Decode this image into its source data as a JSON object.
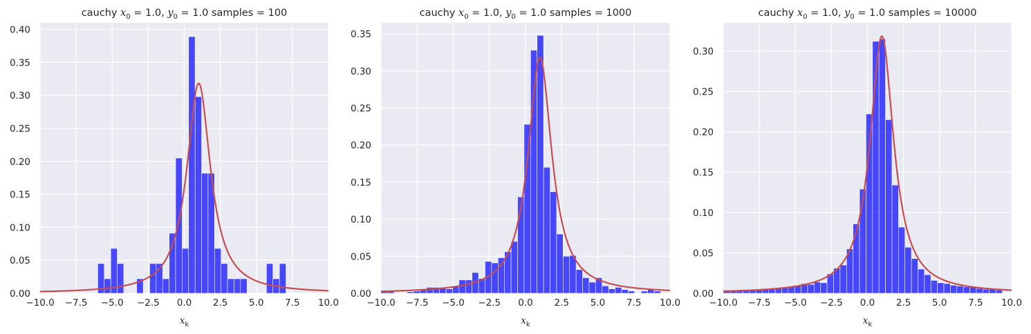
{
  "chart_data": [
    {
      "type": "bar",
      "title": "cauchy $x_0 = 1.0$, $y_0 = 1.0$  samples = 100",
      "xlabel": "$x_k$",
      "ylabel": "",
      "xlim": [
        -10,
        10
      ],
      "ylim": [
        0,
        0.41
      ],
      "xticks": [
        "−10.0",
        "−7.5",
        "−5.0",
        "−2.5",
        "0.0",
        "2.5",
        "5.0",
        "7.5",
        "10.0"
      ],
      "yticks": [
        "0.00",
        "0.05",
        "0.10",
        "0.15",
        "0.20",
        "0.25",
        "0.30",
        "0.35",
        "0.40"
      ],
      "grid": true,
      "bin_width": 0.45,
      "bins": [
        {
          "x": -6.0,
          "h": 0.045
        },
        {
          "x": -5.55,
          "h": 0.022
        },
        {
          "x": -5.1,
          "h": 0.068
        },
        {
          "x": -4.65,
          "h": 0.045
        },
        {
          "x": -3.3,
          "h": 0.022
        },
        {
          "x": -2.4,
          "h": 0.045
        },
        {
          "x": -1.95,
          "h": 0.045
        },
        {
          "x": -1.5,
          "h": 0.022
        },
        {
          "x": -1.05,
          "h": 0.091
        },
        {
          "x": -0.6,
          "h": 0.205
        },
        {
          "x": -0.15,
          "h": 0.068
        },
        {
          "x": 0.3,
          "h": 0.389
        },
        {
          "x": 0.75,
          "h": 0.298
        },
        {
          "x": 1.2,
          "h": 0.182
        },
        {
          "x": 1.65,
          "h": 0.182
        },
        {
          "x": 2.1,
          "h": 0.068
        },
        {
          "x": 2.55,
          "h": 0.045
        },
        {
          "x": 3.0,
          "h": 0.022
        },
        {
          "x": 3.45,
          "h": 0.022
        },
        {
          "x": 3.9,
          "h": 0.022
        },
        {
          "x": 5.7,
          "h": 0.045
        },
        {
          "x": 6.15,
          "h": 0.022
        },
        {
          "x": 6.6,
          "h": 0.045
        }
      ],
      "curve": {
        "type": "cauchy_pdf",
        "x0": 1.0,
        "y0": 1.0
      }
    },
    {
      "type": "bar",
      "title": "cauchy $x_0 = 1.0$, $y_0 = 1.0$  samples = 1000",
      "xlabel": "$x_k$",
      "ylabel": "",
      "xlim": [
        -10,
        10
      ],
      "ylim": [
        0,
        0.365
      ],
      "xticks": [
        "−10.0",
        "−7.5",
        "−5.0",
        "−2.5",
        "0.0",
        "2.5",
        "5.0",
        "7.5",
        "10.0"
      ],
      "yticks": [
        "0.00",
        "0.05",
        "0.10",
        "0.15",
        "0.20",
        "0.25",
        "0.30",
        "0.35"
      ],
      "grid": true,
      "bin_width": 0.45,
      "bins": [
        {
          "x": -10.0,
          "h": 0.003
        },
        {
          "x": -9.55,
          "h": 0.003
        },
        {
          "x": -8.2,
          "h": 0.002
        },
        {
          "x": -7.75,
          "h": 0.003
        },
        {
          "x": -7.3,
          "h": 0.005
        },
        {
          "x": -6.85,
          "h": 0.008
        },
        {
          "x": -6.4,
          "h": 0.008
        },
        {
          "x": -5.95,
          "h": 0.008
        },
        {
          "x": -5.5,
          "h": 0.006
        },
        {
          "x": -5.05,
          "h": 0.01
        },
        {
          "x": -4.6,
          "h": 0.018
        },
        {
          "x": -4.15,
          "h": 0.018
        },
        {
          "x": -3.7,
          "h": 0.028
        },
        {
          "x": -3.25,
          "h": 0.02
        },
        {
          "x": -2.8,
          "h": 0.043
        },
        {
          "x": -2.35,
          "h": 0.041
        },
        {
          "x": -1.9,
          "h": 0.048
        },
        {
          "x": -1.45,
          "h": 0.056
        },
        {
          "x": -1.0,
          "h": 0.07
        },
        {
          "x": -0.55,
          "h": 0.13
        },
        {
          "x": -0.1,
          "h": 0.228
        },
        {
          "x": 0.35,
          "h": 0.328
        },
        {
          "x": 0.8,
          "h": 0.348
        },
        {
          "x": 1.25,
          "h": 0.17
        },
        {
          "x": 1.7,
          "h": 0.137
        },
        {
          "x": 2.15,
          "h": 0.08
        },
        {
          "x": 2.6,
          "h": 0.05
        },
        {
          "x": 3.05,
          "h": 0.051
        },
        {
          "x": 3.5,
          "h": 0.032
        },
        {
          "x": 3.95,
          "h": 0.021
        },
        {
          "x": 4.4,
          "h": 0.015
        },
        {
          "x": 4.85,
          "h": 0.021
        },
        {
          "x": 5.3,
          "h": 0.01
        },
        {
          "x": 5.75,
          "h": 0.006
        },
        {
          "x": 6.2,
          "h": 0.008
        },
        {
          "x": 6.65,
          "h": 0.005
        },
        {
          "x": 7.1,
          "h": 0.003
        },
        {
          "x": 8.0,
          "h": 0.003
        },
        {
          "x": 8.45,
          "h": 0.005
        },
        {
          "x": 8.9,
          "h": 0.003
        }
      ],
      "curve": {
        "type": "cauchy_pdf",
        "x0": 1.0,
        "y0": 1.0
      }
    },
    {
      "type": "bar",
      "title": "cauchy $x_0 = 1.0$, $y_0 = 1.0$  samples = 10000",
      "xlabel": "$x_k$",
      "ylabel": "",
      "xlim": [
        -10,
        10
      ],
      "ylim": [
        0,
        0.335
      ],
      "xticks": [
        "−10.0",
        "−7.5",
        "−5.0",
        "−2.5",
        "0.0",
        "2.5",
        "5.0",
        "7.5",
        "10.0"
      ],
      "yticks": [
        "0.00",
        "0.05",
        "0.10",
        "0.15",
        "0.20",
        "0.25",
        "0.30"
      ],
      "grid": true,
      "bin_width": 0.45,
      "bins": [
        {
          "x": -10.0,
          "h": 0.004
        },
        {
          "x": -9.55,
          "h": 0.004
        },
        {
          "x": -9.1,
          "h": 0.003
        },
        {
          "x": -8.65,
          "h": 0.004
        },
        {
          "x": -8.2,
          "h": 0.004
        },
        {
          "x": -7.75,
          "h": 0.005
        },
        {
          "x": -7.3,
          "h": 0.005
        },
        {
          "x": -6.85,
          "h": 0.005
        },
        {
          "x": -6.4,
          "h": 0.006
        },
        {
          "x": -5.95,
          "h": 0.007
        },
        {
          "x": -5.5,
          "h": 0.008
        },
        {
          "x": -5.05,
          "h": 0.01
        },
        {
          "x": -4.6,
          "h": 0.012
        },
        {
          "x": -4.15,
          "h": 0.011
        },
        {
          "x": -3.7,
          "h": 0.014
        },
        {
          "x": -3.25,
          "h": 0.013
        },
        {
          "x": -2.8,
          "h": 0.024
        },
        {
          "x": -2.35,
          "h": 0.031
        },
        {
          "x": -1.9,
          "h": 0.035
        },
        {
          "x": -1.45,
          "h": 0.055
        },
        {
          "x": -1.0,
          "h": 0.086
        },
        {
          "x": -0.55,
          "h": 0.129
        },
        {
          "x": -0.1,
          "h": 0.222
        },
        {
          "x": 0.35,
          "h": 0.312
        },
        {
          "x": 0.8,
          "h": 0.315
        },
        {
          "x": 1.25,
          "h": 0.215
        },
        {
          "x": 1.7,
          "h": 0.134
        },
        {
          "x": 2.15,
          "h": 0.082
        },
        {
          "x": 2.6,
          "h": 0.057
        },
        {
          "x": 3.05,
          "h": 0.043
        },
        {
          "x": 3.5,
          "h": 0.03
        },
        {
          "x": 3.95,
          "h": 0.023
        },
        {
          "x": 4.4,
          "h": 0.016
        },
        {
          "x": 4.85,
          "h": 0.013
        },
        {
          "x": 5.3,
          "h": 0.012
        },
        {
          "x": 5.75,
          "h": 0.01
        },
        {
          "x": 6.2,
          "h": 0.009
        },
        {
          "x": 6.65,
          "h": 0.008
        },
        {
          "x": 7.1,
          "h": 0.008
        },
        {
          "x": 7.55,
          "h": 0.006
        },
        {
          "x": 8.0,
          "h": 0.005
        },
        {
          "x": 8.45,
          "h": 0.005
        },
        {
          "x": 8.9,
          "h": 0.004
        }
      ],
      "curve": {
        "type": "cauchy_pdf",
        "x0": 1.0,
        "y0": 1.0
      }
    }
  ],
  "colors": {
    "plot_background": "#eaeaf2",
    "grid": "#ffffff",
    "bars": "#0000ff",
    "curve": "#c44e52",
    "text": "#262626"
  }
}
